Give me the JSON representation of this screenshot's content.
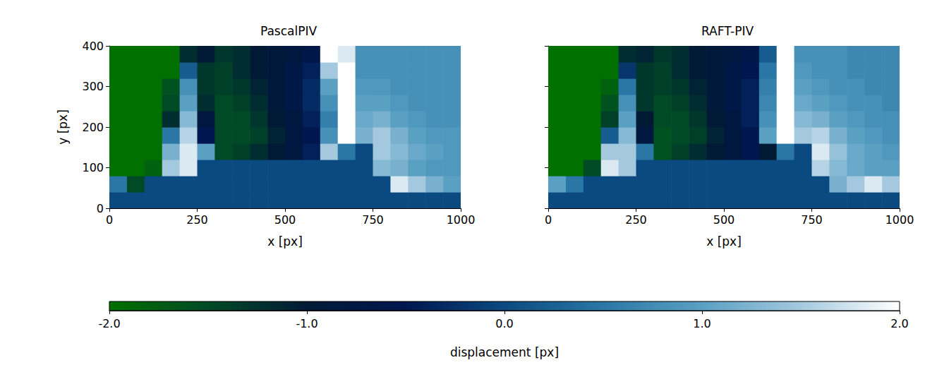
{
  "chart_data": [
    {
      "type": "heatmap",
      "title": "PascalPIV",
      "x_label": "x [px]",
      "y_label": "y [px]",
      "xlim": [
        0,
        1000
      ],
      "ylim": [
        0,
        400
      ],
      "xticks": [
        0,
        250,
        500,
        750,
        1000
      ],
      "yticks": [
        0,
        100,
        200,
        300,
        400
      ],
      "x": [
        25,
        75,
        125,
        175,
        225,
        275,
        325,
        375,
        425,
        475,
        525,
        575,
        625,
        675,
        725,
        775,
        825,
        875,
        925,
        975
      ],
      "y": [
        20,
        60,
        100,
        140,
        180,
        220,
        260,
        300,
        340,
        380
      ],
      "values": [
        [
          0,
          0,
          0,
          0,
          0,
          0,
          0,
          0,
          0,
          0,
          0,
          0,
          0,
          0,
          0,
          0,
          0,
          0,
          0,
          0
        ],
        [
          0.5,
          -1.5,
          0,
          0,
          0,
          0,
          0,
          0,
          0,
          0,
          0,
          0,
          0,
          0,
          0,
          0,
          1.8,
          1.5,
          1.2,
          1.0
        ],
        [
          -2,
          -2,
          -1.8,
          1.5,
          1.8,
          0,
          0,
          0,
          0,
          0,
          0,
          0,
          0,
          0,
          0,
          1.3,
          1.2,
          1.0,
          0.9,
          0.9
        ],
        [
          -2,
          -2,
          -2,
          1.2,
          1.8,
          1.0,
          -1.5,
          -1.4,
          -1.2,
          -1.0,
          -0.8,
          -0.4,
          1.5,
          0.5,
          0,
          1.5,
          1.3,
          1.1,
          1.0,
          0.9
        ],
        [
          -2,
          -2,
          -2,
          0.5,
          1.6,
          -0.5,
          -1.5,
          -1.5,
          -1.4,
          -1.1,
          -0.8,
          -0.5,
          0.8,
          2,
          1.2,
          1.5,
          1.2,
          1.0,
          0.9,
          0.9
        ],
        [
          -2,
          -2,
          -2,
          -1.2,
          1.3,
          -0.8,
          -1.5,
          -1.5,
          -1.3,
          -1.0,
          -0.8,
          -0.4,
          0.6,
          2,
          1.1,
          1.2,
          1.0,
          0.9,
          0.8,
          0.8
        ],
        [
          -2,
          -2,
          -2,
          -1.5,
          1.0,
          -1.2,
          -1.5,
          -1.4,
          -1.2,
          -0.9,
          -0.7,
          -0.3,
          0.8,
          2,
          1.0,
          1.0,
          0.9,
          0.8,
          0.8,
          0.8
        ],
        [
          -2,
          -2,
          -2,
          -1.6,
          0.8,
          -1.3,
          -1.4,
          -1.3,
          -1.1,
          -0.9,
          -0.7,
          -0.3,
          1.0,
          2,
          0.9,
          0.9,
          0.8,
          0.8,
          0.8,
          0.8
        ],
        [
          -2,
          -2,
          -2,
          -2,
          0.2,
          -1.3,
          -1.4,
          -1.2,
          -1.0,
          -0.9,
          -0.7,
          -0.4,
          1.5,
          2,
          0.8,
          0.8,
          0.8,
          0.8,
          0.8,
          0.8
        ],
        [
          -2,
          -2,
          -2,
          -2,
          -1.2,
          -1.0,
          -1.3,
          -1.2,
          -1.0,
          -0.9,
          -0.8,
          -0.6,
          2,
          1.8,
          0.8,
          0.8,
          0.8,
          0.8,
          0.8,
          0.8
        ]
      ]
    },
    {
      "type": "heatmap",
      "title": "RAFT-PIV",
      "x_label": "x [px]",
      "tick_labels": "x",
      "xlim": [
        0,
        1000
      ],
      "ylim": [
        0,
        400
      ],
      "xticks": [
        0,
        250,
        500,
        750,
        1000
      ],
      "yticks": [
        0,
        100,
        200,
        300,
        400
      ],
      "x": [
        25,
        75,
        125,
        175,
        225,
        275,
        325,
        375,
        425,
        475,
        525,
        575,
        625,
        675,
        725,
        775,
        825,
        875,
        925,
        975
      ],
      "y": [
        20,
        60,
        100,
        140,
        180,
        220,
        260,
        300,
        340,
        380
      ],
      "values": [
        [
          0,
          0,
          0,
          0,
          0,
          0,
          0,
          0,
          0,
          0,
          0,
          0,
          0,
          0,
          0,
          0,
          0,
          0,
          0,
          0
        ],
        [
          1.0,
          0.5,
          0,
          0,
          0,
          0,
          0,
          0,
          0,
          0,
          0,
          0,
          0,
          0,
          0,
          0,
          1.2,
          1.5,
          1.8,
          1.5
        ],
        [
          -2,
          -2,
          -1.5,
          1.8,
          1.5,
          0,
          0,
          0,
          0,
          0,
          0,
          0,
          0,
          0,
          0,
          1.6,
          1.3,
          1.1,
          1.0,
          1.0
        ],
        [
          -2,
          -2,
          -2,
          1.5,
          1.5,
          0.5,
          -1.6,
          -1.4,
          -1.2,
          -1.0,
          -0.8,
          -0.5,
          -1.0,
          0.5,
          0,
          1.8,
          1.4,
          1.1,
          1.0,
          0.9
        ],
        [
          -2,
          -2,
          -2,
          0.2,
          1.3,
          -0.8,
          -1.6,
          -1.5,
          -1.4,
          -1.1,
          -0.8,
          -0.5,
          1.0,
          2,
          1.5,
          1.6,
          1.2,
          1.0,
          0.9,
          0.8
        ],
        [
          -2,
          -2,
          -2,
          -1.4,
          1.0,
          -1.0,
          -1.5,
          -1.5,
          -1.3,
          -1.0,
          -0.8,
          -0.4,
          0.8,
          2,
          1.3,
          1.2,
          1.0,
          0.9,
          0.8,
          0.8
        ],
        [
          -2,
          -2,
          -2,
          -1.6,
          0.8,
          -1.3,
          -1.5,
          -1.4,
          -1.2,
          -0.9,
          -0.7,
          -0.4,
          0.7,
          2,
          1.1,
          1.0,
          0.9,
          0.8,
          0.8,
          0.7
        ],
        [
          -2,
          -2,
          -2,
          -1.8,
          0.5,
          -1.3,
          -1.4,
          -1.3,
          -1.1,
          -0.9,
          -0.7,
          -0.4,
          0.6,
          2,
          1.0,
          0.9,
          0.8,
          0.8,
          0.7,
          0.7
        ],
        [
          -2,
          -2,
          -2,
          -2,
          -0.2,
          -1.3,
          -1.4,
          -1.2,
          -1.0,
          -0.9,
          -0.7,
          -0.5,
          0.5,
          2,
          0.9,
          0.8,
          0.8,
          0.7,
          0.7,
          0.7
        ],
        [
          -2,
          -2,
          -2,
          -2,
          -1.2,
          -1.1,
          -1.3,
          -1.2,
          -1.0,
          -0.9,
          -0.8,
          -0.6,
          0.2,
          2,
          0.8,
          0.8,
          0.8,
          0.7,
          0.7,
          0.7
        ]
      ]
    }
  ],
  "colorbar": {
    "label": "displacement [px]",
    "range": [
      -2,
      2
    ],
    "ticks": [
      {
        "value": -2,
        "label": "-2.0"
      },
      {
        "value": -1,
        "label": "-1.0"
      },
      {
        "value": 0,
        "label": "0.0"
      },
      {
        "value": 1,
        "label": "1.0"
      },
      {
        "value": 2,
        "label": "2.0"
      }
    ]
  }
}
